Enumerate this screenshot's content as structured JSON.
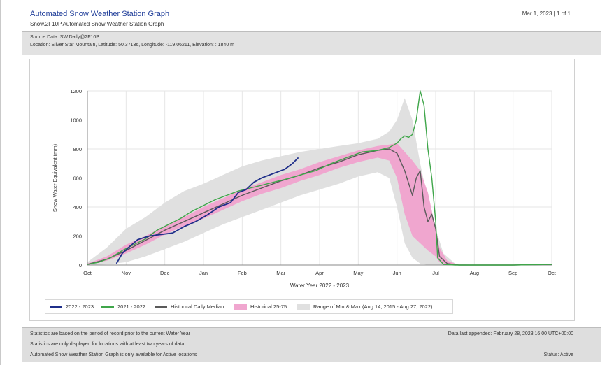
{
  "header": {
    "title": "Automated Snow Weather Station Graph",
    "subtitle": "Snow.2F10P.Automated Snow Weather Station Graph",
    "date": "Mar 1, 2023 | 1 of 1"
  },
  "info": {
    "source": "Source Data: SW.Daily@2F10P",
    "location": "Location: Silver Star Mountain, Latitude: 50.37136, Longitude: -119.06211, Elevation: : 1840 m"
  },
  "footer": {
    "line1": "Statistics are based on the period of record prior to the current Water Year",
    "line2": "Statistics are only displayed for locations with at least two years of data",
    "line3": "Automated Snow Weather Station Graph is only available for Active locations",
    "appended": "Data last appended: February 28, 2023 16:00 UTC+00:00",
    "status": "Status: Active"
  },
  "colors": {
    "s2022": "#1f2f8a",
    "s2021": "#3fa64a",
    "median": "#5a5a5a",
    "pct": "#f0a6cf",
    "range": "#e0e0e0"
  },
  "chart_data": {
    "type": "line",
    "xlabel": "Water Year 2022 - 2023",
    "ylabel": "Snow Water Equivalent (mm)",
    "xticks": [
      "Oct",
      "Nov",
      "Dec",
      "Jan",
      "Feb",
      "Mar",
      "Apr",
      "May",
      "Jun",
      "Jul",
      "Aug",
      "Sep",
      "Oct"
    ],
    "yticks": [
      "0",
      "200",
      "400",
      "600",
      "800",
      "1000",
      "1200"
    ],
    "ylim": [
      0,
      1200
    ],
    "xlim": [
      0,
      12
    ],
    "grid": true,
    "legend_position": "bottom",
    "series": [
      {
        "name": "2022 - 2023",
        "key": "s2022",
        "x": [
          0.75,
          0.9,
          1.1,
          1.3,
          1.6,
          1.9,
          2.2,
          2.5,
          2.8,
          3.1,
          3.4,
          3.7,
          3.9,
          4.1,
          4.3,
          4.5,
          4.7,
          4.9,
          5.1,
          5.3,
          5.45
        ],
        "y": [
          10,
          80,
          130,
          175,
          200,
          210,
          220,
          265,
          300,
          345,
          400,
          430,
          500,
          520,
          570,
          600,
          620,
          640,
          660,
          700,
          740
        ]
      },
      {
        "name": "2021 - 2022",
        "key": "s2021",
        "x": [
          0,
          0.3,
          0.6,
          0.9,
          1.2,
          1.5,
          1.8,
          2.1,
          2.4,
          2.7,
          3.0,
          3.3,
          3.6,
          3.9,
          4.2,
          4.5,
          4.8,
          5.1,
          5.5,
          5.9,
          6.3,
          6.7,
          7.1,
          7.5,
          7.8,
          8.0,
          8.1,
          8.2,
          8.3,
          8.4,
          8.5,
          8.6,
          8.7,
          8.8,
          8.9,
          9.0,
          9.05,
          9.2,
          9.5,
          10,
          11,
          12
        ],
        "y": [
          5,
          20,
          50,
          100,
          140,
          180,
          240,
          280,
          320,
          370,
          410,
          450,
          480,
          510,
          530,
          550,
          570,
          590,
          620,
          650,
          700,
          740,
          780,
          790,
          810,
          840,
          870,
          890,
          880,
          900,
          1000,
          1200,
          1100,
          800,
          600,
          300,
          50,
          5,
          0,
          0,
          0,
          5
        ]
      },
      {
        "name": "Historical Daily Median",
        "key": "median",
        "x": [
          0,
          0.5,
          1.0,
          1.5,
          2.0,
          2.5,
          3.0,
          3.5,
          4.0,
          4.5,
          5.0,
          5.5,
          6.0,
          6.5,
          7.0,
          7.5,
          7.8,
          8.0,
          8.2,
          8.4,
          8.5,
          8.6,
          8.7,
          8.8,
          8.9,
          9.0,
          9.1,
          9.3,
          9.6,
          10,
          11,
          12
        ],
        "y": [
          5,
          40,
          100,
          170,
          240,
          300,
          360,
          420,
          480,
          530,
          580,
          620,
          670,
          710,
          760,
          790,
          800,
          770,
          650,
          480,
          600,
          650,
          400,
          300,
          350,
          250,
          60,
          10,
          0,
          0,
          0,
          5
        ]
      }
    ],
    "bands": [
      {
        "name": "Historical 25-75",
        "key": "pct",
        "x": [
          0,
          0.5,
          1.0,
          1.5,
          2.0,
          2.5,
          3.0,
          3.5,
          4.0,
          4.5,
          5.0,
          5.5,
          6.0,
          6.5,
          7.0,
          7.5,
          7.8,
          8.0,
          8.2,
          8.4,
          8.6,
          8.8,
          9.0,
          9.1,
          9.3,
          9.6
        ],
        "lower": [
          0,
          30,
          80,
          140,
          210,
          270,
          320,
          380,
          440,
          490,
          530,
          580,
          620,
          670,
          710,
          740,
          720,
          600,
          350,
          200,
          150,
          100,
          60,
          20,
          5,
          0
        ],
        "upper": [
          10,
          60,
          140,
          200,
          270,
          330,
          400,
          460,
          520,
          570,
          620,
          660,
          710,
          750,
          790,
          820,
          830,
          840,
          780,
          720,
          650,
          500,
          250,
          120,
          30,
          0
        ]
      },
      {
        "name": "Range of Min & Max (Aug 14, 2015 - Aug 27, 2022)",
        "key": "range",
        "x": [
          0,
          0.5,
          1.0,
          1.5,
          2.0,
          2.5,
          3.0,
          3.5,
          4.0,
          4.5,
          5.0,
          5.5,
          6.0,
          6.5,
          7.0,
          7.5,
          7.8,
          8.0,
          8.2,
          8.4,
          8.6,
          8.8,
          9.0,
          9.2,
          9.5,
          10
        ],
        "lower": [
          0,
          5,
          20,
          60,
          110,
          160,
          220,
          280,
          330,
          380,
          430,
          480,
          520,
          560,
          610,
          640,
          600,
          400,
          150,
          50,
          10,
          0,
          0,
          0,
          0,
          0
        ],
        "upper": [
          20,
          120,
          250,
          330,
          430,
          510,
          560,
          620,
          680,
          720,
          750,
          780,
          800,
          820,
          840,
          870,
          920,
          1000,
          1150,
          1000,
          700,
          450,
          250,
          80,
          10,
          0
        ]
      }
    ]
  }
}
